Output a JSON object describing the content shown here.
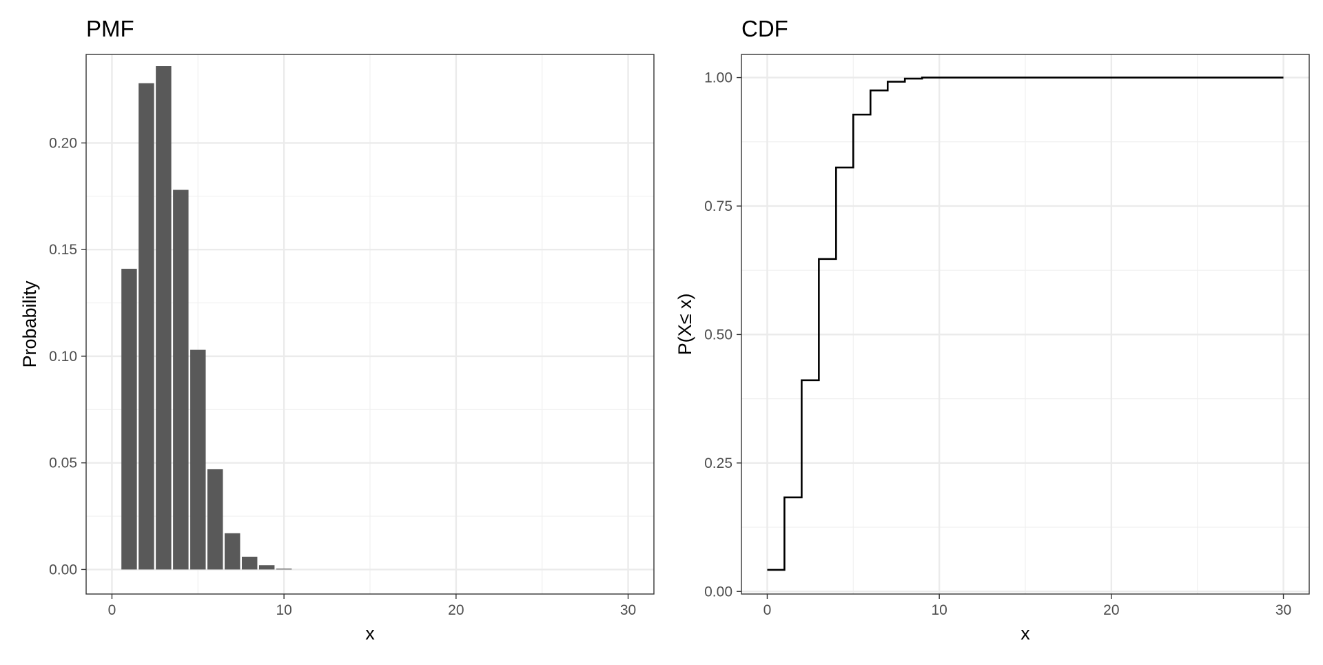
{
  "chart_data": [
    {
      "type": "bar",
      "title": "PMF",
      "xlabel": "x",
      "ylabel": "Probability",
      "xlim": [
        -1.5,
        31.5
      ],
      "ylim": [
        -0.0115,
        0.2415
      ],
      "xticks": [
        0,
        10,
        20,
        30
      ],
      "xtick_labels": [
        "0",
        "10",
        "20",
        "30"
      ],
      "yticks": [
        0,
        0.05,
        0.1,
        0.15,
        0.2
      ],
      "ytick_labels": [
        "0.00",
        "0.05",
        "0.10",
        "0.15",
        "0.20"
      ],
      "grid": true,
      "legend": "none",
      "bar_color": "#595959",
      "x": [
        1,
        2,
        3,
        4,
        5,
        6,
        7,
        8,
        9,
        10
      ],
      "values": [
        0.141,
        0.228,
        0.236,
        0.178,
        0.103,
        0.047,
        0.017,
        0.006,
        0.002,
        0.0004
      ]
    },
    {
      "type": "line",
      "title": "CDF",
      "xlabel": "x",
      "ylabel": "P(X≤ x)",
      "xlim": [
        -1.5,
        31.5
      ],
      "ylim": [
        -0.005,
        1.045
      ],
      "xticks": [
        0,
        10,
        20,
        30
      ],
      "xtick_labels": [
        "0",
        "10",
        "20",
        "30"
      ],
      "yticks": [
        0,
        0.25,
        0.5,
        0.75,
        1
      ],
      "ytick_labels": [
        "0.00",
        "0.25",
        "0.50",
        "0.75",
        "1.00"
      ],
      "grid": true,
      "legend": "none",
      "line_color": "#000000",
      "step": true,
      "x": [
        0,
        1,
        2,
        3,
        4,
        5,
        6,
        7,
        8,
        9,
        10,
        30
      ],
      "y": [
        0.042,
        0.183,
        0.411,
        0.647,
        0.825,
        0.928,
        0.975,
        0.992,
        0.998,
        1.0,
        1.0,
        1.0
      ]
    }
  ]
}
